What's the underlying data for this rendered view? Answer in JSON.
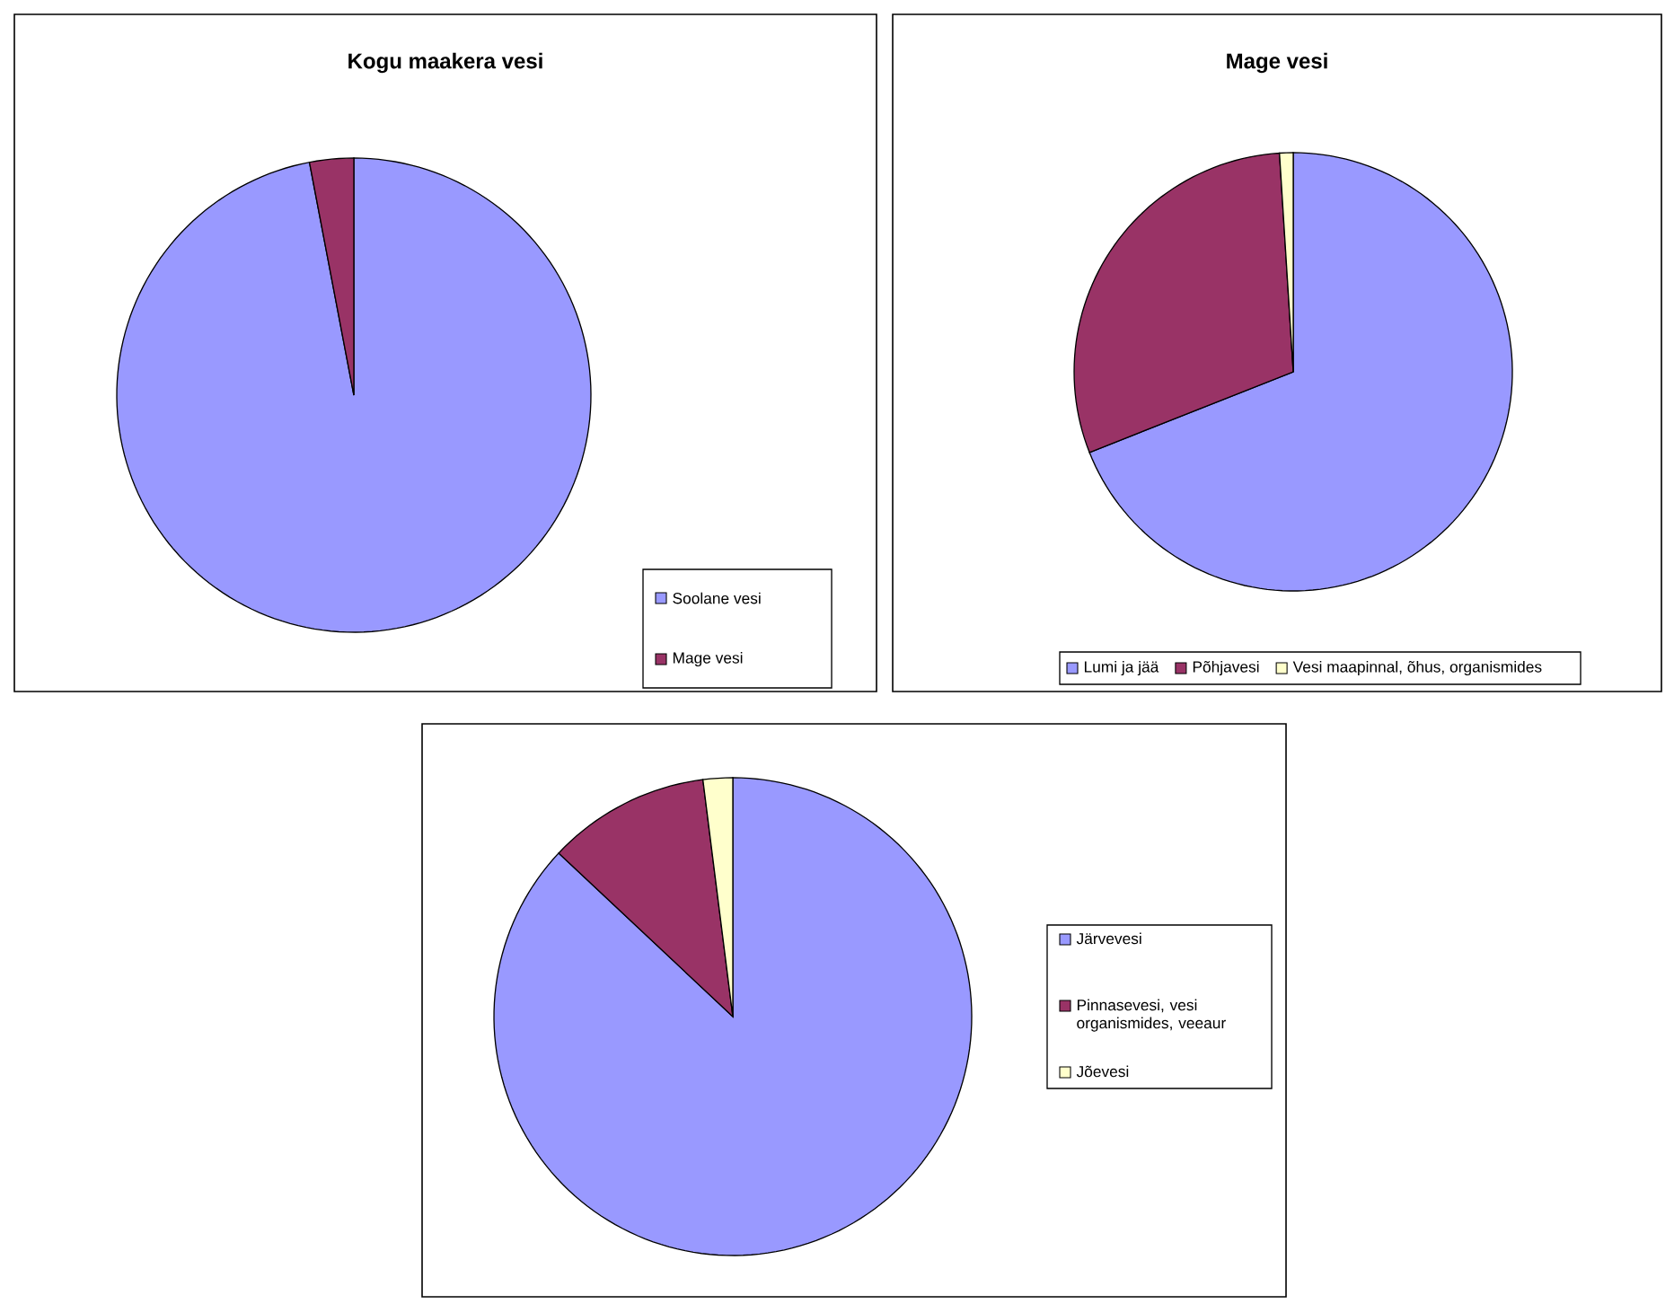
{
  "chart_data": [
    {
      "type": "pie",
      "title": "Kogu maakera vesi",
      "categories": [
        "Soolane vesi",
        "Mage vesi"
      ],
      "values": [
        97,
        3
      ],
      "colors": [
        "#9999ff",
        "#993366"
      ],
      "legend": "bottom right"
    },
    {
      "type": "pie",
      "title": "Mage vesi",
      "categories": [
        "Lumi ja jää",
        "Põhjavesi",
        "Vesi maapinnal, õhus, organismides"
      ],
      "values": [
        69,
        30,
        1
      ],
      "colors": [
        "#9999ff",
        "#993366",
        "#ffffcc"
      ],
      "legend": "bottom"
    },
    {
      "type": "pie",
      "categories": [
        "Järvevesi",
        "Pinnasevesi, vesi organismides, veeaur",
        "Jõevesi"
      ],
      "values": [
        87,
        11,
        2
      ],
      "colors": [
        "#9999ff",
        "#993366",
        "#ffffcc"
      ],
      "legend": "right"
    }
  ]
}
